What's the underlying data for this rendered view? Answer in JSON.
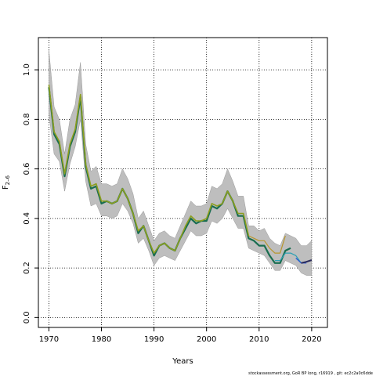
{
  "chart_data": {
    "type": "line",
    "xlabel": "Years",
    "ylabel": "F",
    "ylabel_subscript": "2–6",
    "xlim": [
      1968,
      2023
    ],
    "ylim": [
      -0.04,
      1.13
    ],
    "xticks": [
      1970,
      1980,
      1990,
      2000,
      2010,
      2020
    ],
    "yticks": [
      0.0,
      0.2,
      0.4,
      0.6,
      0.8,
      1.0
    ],
    "ytick_labels": [
      "0.0",
      "0.2",
      "0.4",
      "0.6",
      "0.8",
      "1.0"
    ],
    "grid": "dotted",
    "footer": "stockassessment.org, GoR BP long, r16919 , git: ec2c2a0c6dde",
    "band": {
      "color": "#bebebe",
      "x": [
        1970,
        1971,
        1972,
        1973,
        1974,
        1975,
        1976,
        1977,
        1978,
        1979,
        1980,
        1981,
        1982,
        1983,
        1984,
        1985,
        1986,
        1987,
        1988,
        1989,
        1990,
        1991,
        1992,
        1993,
        1994,
        1995,
        1996,
        1997,
        1998,
        1999,
        2000,
        2001,
        2002,
        2003,
        2004,
        2005,
        2006,
        2007,
        2008,
        2009,
        2010,
        2011,
        2012,
        2013,
        2014,
        2015,
        2016,
        2017,
        2018,
        2019,
        2020
      ],
      "upper": [
        1.08,
        0.85,
        0.8,
        0.66,
        0.8,
        0.86,
        1.03,
        0.7,
        0.59,
        0.61,
        0.54,
        0.54,
        0.53,
        0.54,
        0.6,
        0.56,
        0.5,
        0.4,
        0.43,
        0.37,
        0.31,
        0.34,
        0.35,
        0.33,
        0.32,
        0.37,
        0.42,
        0.47,
        0.45,
        0.45,
        0.46,
        0.53,
        0.52,
        0.54,
        0.6,
        0.55,
        0.49,
        0.49,
        0.37,
        0.37,
        0.35,
        0.36,
        0.32,
        0.3,
        0.29,
        0.34,
        0.33,
        0.32,
        0.29,
        0.29,
        0.31
      ],
      "lower": [
        0.82,
        0.66,
        0.63,
        0.51,
        0.62,
        0.69,
        0.8,
        0.55,
        0.45,
        0.46,
        0.41,
        0.41,
        0.4,
        0.41,
        0.46,
        0.43,
        0.38,
        0.3,
        0.32,
        0.27,
        0.21,
        0.24,
        0.25,
        0.24,
        0.23,
        0.27,
        0.31,
        0.35,
        0.33,
        0.33,
        0.34,
        0.39,
        0.38,
        0.4,
        0.44,
        0.4,
        0.36,
        0.36,
        0.28,
        0.27,
        0.26,
        0.25,
        0.22,
        0.19,
        0.19,
        0.23,
        0.22,
        0.21,
        0.18,
        0.17,
        0.17
      ]
    },
    "series": [
      {
        "color": "#1a6e50",
        "width": 2.2,
        "x": [
          1970,
          1971,
          1972,
          1973,
          1974,
          1975,
          1976,
          1977,
          1978,
          1979,
          1980,
          1981,
          1982,
          1983,
          1984,
          1985,
          1986,
          1987,
          1988,
          1989,
          1990,
          1991,
          1992,
          1993,
          1994,
          1995,
          1996,
          1997,
          1998,
          1999,
          2000,
          2001,
          2002,
          2003,
          2004,
          2005,
          2006,
          2007,
          2008,
          2009,
          2010,
          2011,
          2012,
          2013,
          2014,
          2015,
          2016
        ],
        "values": [
          0.93,
          0.74,
          0.7,
          0.57,
          0.69,
          0.75,
          0.89,
          0.61,
          0.52,
          0.53,
          0.46,
          0.47,
          0.46,
          0.47,
          0.52,
          0.48,
          0.42,
          0.34,
          0.37,
          0.31,
          0.25,
          0.29,
          0.3,
          0.28,
          0.27,
          0.32,
          0.36,
          0.4,
          0.38,
          0.39,
          0.39,
          0.45,
          0.44,
          0.46,
          0.51,
          0.47,
          0.41,
          0.41,
          0.32,
          0.31,
          0.29,
          0.29,
          0.25,
          0.22,
          0.22,
          0.27,
          0.28
        ]
      },
      {
        "color": "#8c9e1e",
        "width": 1.6,
        "x": [
          1970,
          1971,
          1972,
          1973,
          1974,
          1975,
          1976,
          1977,
          1978,
          1979,
          1980,
          1981,
          1982,
          1983,
          1984,
          1985,
          1986,
          1987,
          1988,
          1989,
          1990,
          1991,
          1992,
          1993,
          1994,
          1995,
          1996,
          1997,
          1998,
          1999,
          2000,
          2001,
          2002,
          2003,
          2004,
          2005,
          2006,
          2007,
          2008
        ],
        "values": [
          0.94,
          0.75,
          0.71,
          0.58,
          0.7,
          0.76,
          0.9,
          0.62,
          0.53,
          0.54,
          0.47,
          0.47,
          0.46,
          0.47,
          0.52,
          0.48,
          0.42,
          0.35,
          0.37,
          0.31,
          0.26,
          0.29,
          0.3,
          0.28,
          0.27,
          0.32,
          0.37,
          0.41,
          0.39,
          0.39,
          0.4,
          0.46,
          0.45,
          0.46,
          0.51,
          0.47,
          0.42,
          0.42,
          0.33
        ]
      },
      {
        "color": "#b8962e",
        "width": 1.2,
        "x": [
          2008,
          2009,
          2010,
          2011,
          2012,
          2013,
          2014,
          2015
        ],
        "values": [
          0.33,
          0.32,
          0.31,
          0.31,
          0.28,
          0.26,
          0.26,
          0.33
        ]
      },
      {
        "color": "#2ca0b4",
        "width": 1.2,
        "x": [
          2013,
          2014,
          2015,
          2016,
          2017,
          2018
        ],
        "values": [
          0.23,
          0.23,
          0.26,
          0.26,
          0.25,
          0.22
        ]
      },
      {
        "color": "#2b55d4",
        "width": 1.2,
        "x": [
          2017,
          2018,
          2019
        ],
        "values": [
          0.24,
          0.22,
          0.22
        ]
      },
      {
        "color": "#2a2a5a",
        "width": 2.0,
        "x": [
          2018,
          2019,
          2020
        ],
        "values": [
          0.22,
          0.225,
          0.232
        ]
      }
    ]
  }
}
